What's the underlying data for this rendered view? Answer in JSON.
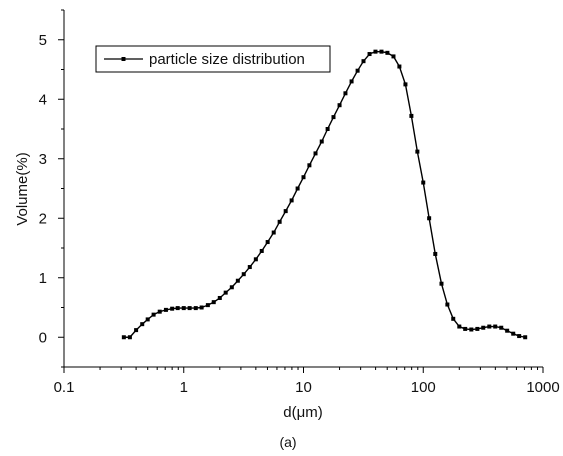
{
  "chart_data": {
    "type": "line",
    "xscale": "log",
    "xlim": [
      0.1,
      1000
    ],
    "ylim": [
      -0.5,
      5.5
    ],
    "xticks": [
      "0.1",
      "1",
      "10",
      "100",
      "1000"
    ],
    "xtick_values": [
      0.1,
      1,
      10,
      100,
      1000
    ],
    "yticks": [
      "0",
      "1",
      "2",
      "3",
      "4",
      "5"
    ],
    "ytick_values": [
      0,
      1,
      2,
      3,
      4,
      5
    ],
    "xlabel": "d(μm)",
    "ylabel": "Volume(%)",
    "caption": "(a)",
    "grid": false,
    "legend_position": "top-left",
    "line_color": "#000000",
    "series": [
      {
        "name": "particle size distribution",
        "x": [
          0.316,
          0.355,
          0.4,
          0.45,
          0.5,
          0.56,
          0.63,
          0.71,
          0.8,
          0.89,
          1.0,
          1.12,
          1.26,
          1.41,
          1.59,
          1.78,
          2.0,
          2.24,
          2.52,
          2.83,
          3.17,
          3.56,
          4.0,
          4.48,
          5.02,
          5.64,
          6.32,
          7.1,
          7.96,
          8.93,
          10.0,
          11.2,
          12.6,
          14.2,
          15.9,
          17.8,
          20.0,
          22.4,
          25.2,
          28.3,
          31.7,
          35.6,
          39.9,
          44.8,
          50.2,
          56.4,
          63.2,
          71.0,
          79.6,
          89.3,
          100,
          112,
          126,
          142,
          159,
          178,
          200,
          224,
          252,
          283,
          317,
          356,
          399,
          448,
          502,
          564,
          632,
          710
        ],
        "y": [
          0.0,
          0.0,
          0.12,
          0.22,
          0.3,
          0.38,
          0.43,
          0.46,
          0.48,
          0.49,
          0.49,
          0.49,
          0.49,
          0.5,
          0.54,
          0.59,
          0.66,
          0.75,
          0.84,
          0.95,
          1.06,
          1.18,
          1.31,
          1.45,
          1.6,
          1.76,
          1.94,
          2.12,
          2.3,
          2.5,
          2.69,
          2.89,
          3.09,
          3.29,
          3.5,
          3.7,
          3.9,
          4.1,
          4.3,
          4.48,
          4.64,
          4.76,
          4.8,
          4.8,
          4.78,
          4.72,
          4.55,
          4.25,
          3.72,
          3.12,
          2.6,
          2.0,
          1.4,
          0.9,
          0.55,
          0.31,
          0.18,
          0.14,
          0.13,
          0.14,
          0.16,
          0.18,
          0.18,
          0.16,
          0.11,
          0.06,
          0.02,
          0.0
        ]
      }
    ]
  }
}
